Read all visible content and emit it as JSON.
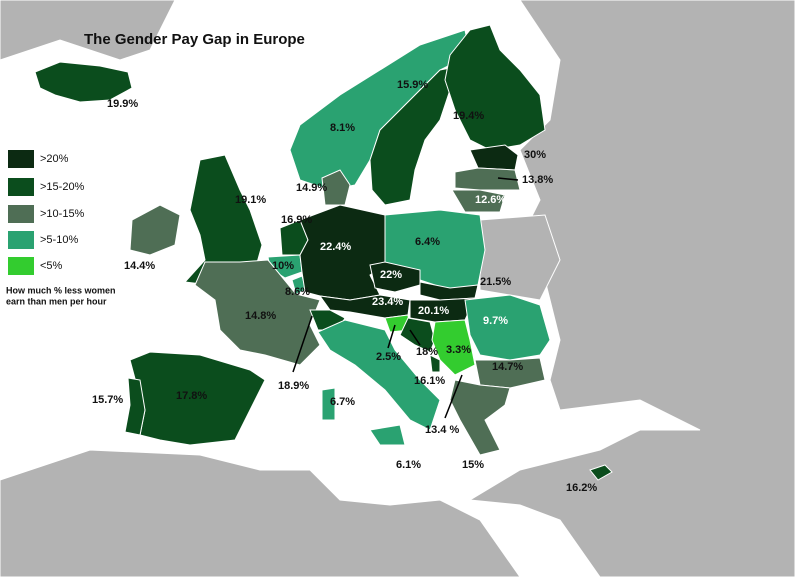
{
  "title": "The Gender Pay Gap in Europe",
  "legend": {
    "items": [
      ">20%",
      ">15-20%",
      ">10-15%",
      ">5-10%",
      "<5%"
    ],
    "note": [
      "How much % less women",
      "earn than men per hour"
    ]
  },
  "labels": [
    "19.9%",
    "8.1%",
    "15.9%",
    "19.4%",
    "30%",
    "13.8%",
    "12.6%",
    "14.9%",
    "19.1%",
    "16.9%",
    "14.4%",
    "22.4%",
    "6.4%",
    "10%",
    "8.6%",
    "22%",
    "21.5%",
    "14.8%",
    "23.4%",
    "20.1%",
    "9.7%",
    "2.5%",
    "18%",
    "3.3%",
    "14.7%",
    "18.9%",
    "16.1%",
    "15.7%",
    "17.8%",
    "6.7%",
    "13.4 %",
    "6.1%",
    "15%",
    "16.2%"
  ]
}
